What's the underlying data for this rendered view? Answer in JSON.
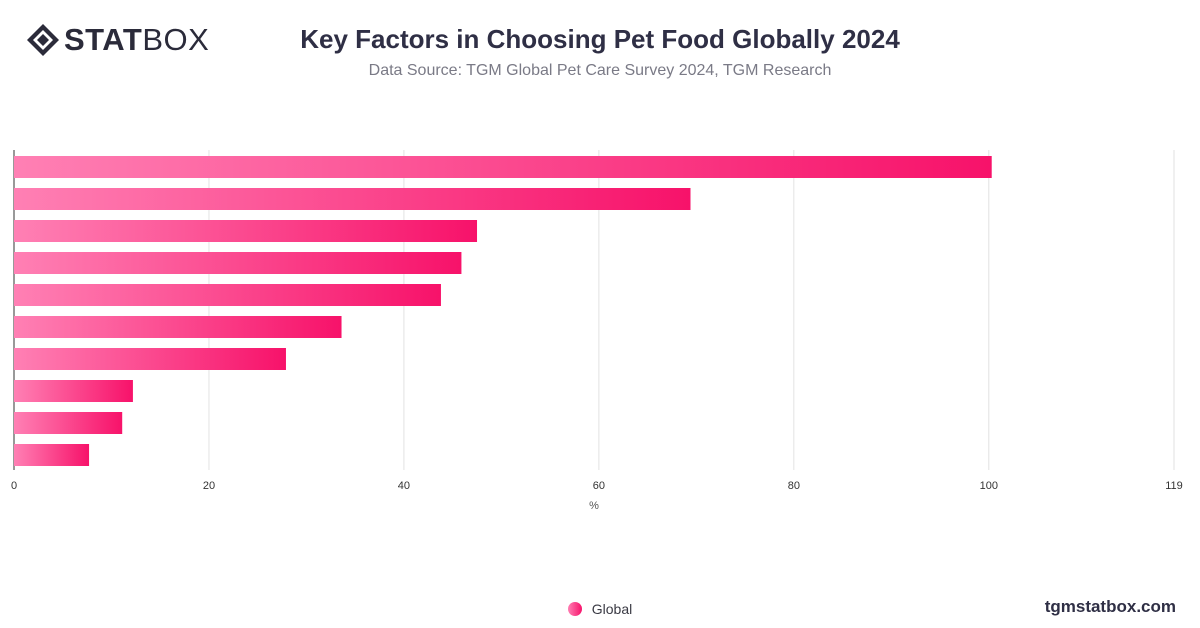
{
  "header": {
    "logo_bold": "STAT",
    "logo_light": "BOX",
    "title": "Key Factors in Choosing Pet Food Globally 2024",
    "subtitle": "Data Source: TGM Global Pet Care Survey 2024, TGM Research"
  },
  "footer": {
    "legend_label": "Global",
    "site": "tgmstatbox.com"
  },
  "colors": {
    "bar_start": "#ff80b4",
    "bar_end": "#f7126a",
    "grid": "#e2e2e2",
    "axis_text": "#333333"
  },
  "chart_data": {
    "type": "bar",
    "orientation": "horizontal",
    "categories": [
      "",
      "",
      "",
      "",
      "",
      "",
      "",
      "",
      "",
      ""
    ],
    "series": [
      {
        "name": "Global",
        "values": [
          100.3,
          69.4,
          47.5,
          45.9,
          43.8,
          33.6,
          27.9,
          12.2,
          11.1,
          7.7
        ]
      }
    ],
    "xlabel": "%",
    "xlim": [
      0,
      119
    ],
    "xticks": [
      0,
      20,
      40,
      60,
      80,
      100,
      119
    ],
    "grid": true,
    "legend": "bottom-center"
  }
}
